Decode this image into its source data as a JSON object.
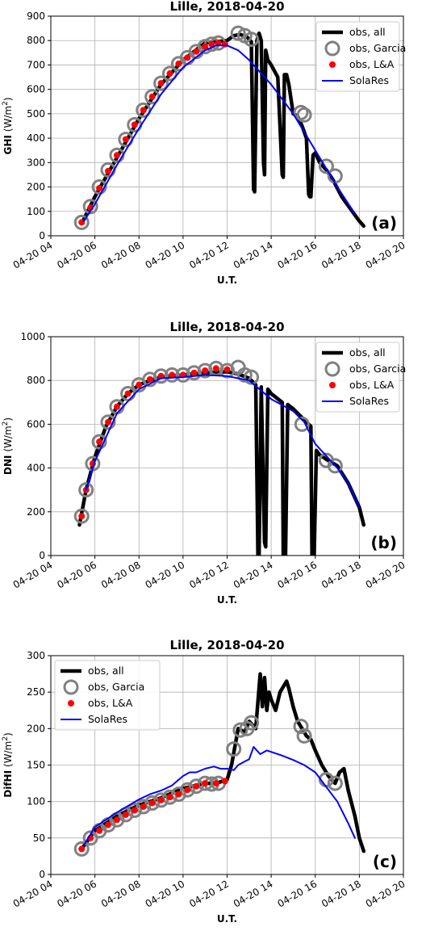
{
  "chart_data": [
    {
      "type": "line",
      "title": "Lille, 2018-04-20",
      "xlabel": "U.T.",
      "ylabel": "GHI",
      "ylabel_unit": "W/m",
      "ylabel_unit_sup": "2",
      "panel_label": "(a)",
      "xlim": [
        4,
        20
      ],
      "ylim": [
        0,
        900
      ],
      "xticks": [
        "04-20 04",
        "04-20 06",
        "04-20 08",
        "04-20 10",
        "04-20 12",
        "04-20 14",
        "04-20 16",
        "04-20 18",
        "04-20 20"
      ],
      "yticks": [
        0,
        100,
        200,
        300,
        400,
        500,
        600,
        700,
        800,
        900
      ],
      "grid": true,
      "legend_position": "top-right",
      "legend": [
        "obs, all",
        "obs, Garcia",
        "obs, L&A",
        "SolaRes"
      ],
      "series": [
        {
          "name": "obs, all",
          "x": [
            5.4,
            6.0,
            7.0,
            8.0,
            9.0,
            10.0,
            10.5,
            11.0,
            11.5,
            12.0,
            12.3,
            12.6,
            12.9,
            13.1,
            13.2,
            13.25,
            13.35,
            13.45,
            13.55,
            13.65,
            13.7,
            13.75,
            13.85,
            14.0,
            14.3,
            14.5,
            14.55,
            14.6,
            14.7,
            14.8,
            15.0,
            15.2,
            15.4,
            15.6,
            15.7,
            15.75,
            15.8,
            15.9,
            16.0,
            16.2,
            16.5,
            16.8,
            17.2,
            17.6,
            18.0,
            18.2
          ],
          "y": [
            50,
            160,
            320,
            480,
            620,
            720,
            755,
            790,
            795,
            800,
            820,
            825,
            815,
            795,
            190,
            180,
            800,
            830,
            800,
            300,
            250,
            760,
            720,
            700,
            650,
            250,
            240,
            660,
            660,
            620,
            500,
            490,
            450,
            400,
            170,
            160,
            160,
            330,
            340,
            300,
            270,
            230,
            160,
            110,
            60,
            40
          ]
        },
        {
          "name": "obs, Garcia",
          "x": [
            5.4,
            5.8,
            6.2,
            6.6,
            7.0,
            7.4,
            7.8,
            8.2,
            8.6,
            9.0,
            9.4,
            9.8,
            10.2,
            10.6,
            11.0,
            11.3,
            11.6,
            12.5,
            12.8,
            13.1,
            15.35,
            15.5,
            16.5,
            16.9
          ],
          "y": [
            55,
            120,
            200,
            270,
            330,
            395,
            455,
            515,
            570,
            625,
            665,
            705,
            730,
            755,
            775,
            785,
            790,
            830,
            820,
            805,
            505,
            495,
            285,
            245
          ]
        },
        {
          "name": "obs, L&A",
          "x": [
            5.4,
            5.8,
            6.2,
            6.6,
            7.0,
            7.4,
            7.8,
            8.2,
            8.6,
            9.0,
            9.4,
            9.8,
            10.2,
            10.6,
            11.0,
            11.3,
            11.6,
            11.9
          ],
          "y": [
            55,
            115,
            195,
            265,
            330,
            395,
            455,
            515,
            570,
            625,
            665,
            705,
            730,
            755,
            775,
            785,
            790,
            785
          ]
        },
        {
          "name": "SolaRes",
          "x": [
            5.5,
            6.0,
            7.0,
            8.0,
            9.0,
            10.0,
            11.0,
            11.5,
            12.0,
            12.5,
            13.0,
            14.0,
            15.0,
            16.0,
            17.0,
            17.8
          ],
          "y": [
            60,
            130,
            290,
            440,
            580,
            690,
            760,
            780,
            780,
            760,
            720,
            620,
            500,
            350,
            200,
            90
          ]
        }
      ]
    },
    {
      "type": "line",
      "title": "Lille, 2018-04-20",
      "xlabel": "U.T.",
      "ylabel": "DNI",
      "ylabel_unit": "W/m",
      "ylabel_unit_sup": "2",
      "panel_label": "(b)",
      "xlim": [
        4,
        20
      ],
      "ylim": [
        0,
        1000
      ],
      "xticks": [
        "04-20 04",
        "04-20 06",
        "04-20 08",
        "04-20 10",
        "04-20 12",
        "04-20 14",
        "04-20 16",
        "04-20 18",
        "04-20 20"
      ],
      "yticks": [
        0,
        200,
        400,
        600,
        800,
        1000
      ],
      "grid": true,
      "legend_position": "top-right",
      "legend": [
        "obs, all",
        "obs, Garcia",
        "obs, L&A",
        "SolaRes"
      ],
      "series": [
        {
          "name": "obs, all",
          "x": [
            5.3,
            5.6,
            6.0,
            6.5,
            7.0,
            7.5,
            8.0,
            8.5,
            9.0,
            10.0,
            11.0,
            12.0,
            12.5,
            13.0,
            13.3,
            13.4,
            13.45,
            13.55,
            13.7,
            13.75,
            13.85,
            14.0,
            14.5,
            14.55,
            14.65,
            14.75,
            15.0,
            15.5,
            15.8,
            15.85,
            15.95,
            16.05,
            16.2,
            16.5,
            17.0,
            17.5,
            18.0,
            18.2
          ],
          "y": [
            140,
            300,
            450,
            590,
            680,
            740,
            780,
            800,
            815,
            825,
            835,
            840,
            830,
            810,
            780,
            0,
            0,
            770,
            60,
            40,
            760,
            740,
            700,
            0,
            0,
            690,
            670,
            620,
            590,
            0,
            0,
            480,
            460,
            440,
            410,
            330,
            220,
            140
          ]
        },
        {
          "name": "obs, Garcia",
          "x": [
            5.4,
            5.6,
            5.9,
            6.2,
            6.6,
            7.0,
            7.5,
            8.0,
            8.5,
            9.0,
            9.5,
            10.0,
            10.5,
            11.0,
            11.5,
            12.0,
            12.5,
            12.8,
            13.1,
            15.4,
            16.5,
            16.9
          ],
          "y": [
            180,
            300,
            420,
            520,
            610,
            680,
            740,
            780,
            805,
            820,
            825,
            825,
            835,
            845,
            855,
            845,
            860,
            825,
            815,
            600,
            435,
            410
          ]
        },
        {
          "name": "obs, L&A",
          "x": [
            5.4,
            5.6,
            5.9,
            6.2,
            6.6,
            7.0,
            7.5,
            8.0,
            8.5,
            9.0,
            9.5,
            10.0,
            10.5,
            11.0,
            11.5,
            12.0
          ],
          "y": [
            180,
            300,
            420,
            520,
            610,
            680,
            740,
            780,
            805,
            820,
            825,
            825,
            835,
            845,
            855,
            850
          ]
        },
        {
          "name": "SolaRes",
          "x": [
            5.6,
            6.0,
            7.0,
            8.0,
            9.0,
            10.0,
            11.0,
            12.0,
            12.5,
            13.0,
            14.0,
            15.0,
            15.5,
            16.0,
            17.0,
            17.5,
            18.0
          ],
          "y": [
            300,
            430,
            650,
            760,
            810,
            815,
            825,
            820,
            810,
            800,
            715,
            660,
            610,
            510,
            400,
            330,
            220
          ]
        }
      ]
    },
    {
      "type": "line",
      "title": "Lille, 2018-04-20",
      "xlabel": "U.T.",
      "ylabel": "DifHI",
      "ylabel_unit": "W/m",
      "ylabel_unit_sup": "2",
      "panel_label": "(c)",
      "xlim": [
        4,
        20
      ],
      "ylim": [
        0,
        300
      ],
      "xticks": [
        "04-20 04",
        "04-20 06",
        "04-20 08",
        "04-20 10",
        "04-20 12",
        "04-20 14",
        "04-20 16",
        "04-20 18",
        "04-20 20"
      ],
      "yticks": [
        0,
        50,
        100,
        150,
        200,
        250,
        300
      ],
      "grid": true,
      "legend_position": "top-left",
      "legend": [
        "obs, all",
        "obs, Garcia",
        "obs, L&A",
        "SolaRes"
      ],
      "series": [
        {
          "name": "obs, all",
          "x": [
            5.4,
            6.0,
            7.0,
            8.0,
            9.0,
            10.0,
            11.0,
            11.5,
            12.0,
            12.2,
            12.5,
            12.8,
            13.0,
            13.3,
            13.5,
            13.6,
            13.7,
            13.8,
            13.9,
            14.0,
            14.2,
            14.4,
            14.6,
            14.7,
            14.8,
            15.0,
            15.2,
            15.4,
            15.6,
            15.8,
            16.0,
            16.3,
            16.6,
            16.9,
            17.1,
            17.3,
            17.5,
            17.8,
            18.0,
            18.2
          ],
          "y": [
            35,
            60,
            80,
            95,
            105,
            118,
            125,
            125,
            130,
            150,
            200,
            195,
            210,
            200,
            275,
            230,
            270,
            225,
            250,
            240,
            225,
            250,
            260,
            265,
            255,
            230,
            210,
            200,
            190,
            185,
            170,
            150,
            135,
            125,
            140,
            145,
            115,
            80,
            50,
            32
          ]
        },
        {
          "name": "obs, Garcia",
          "x": [
            5.4,
            5.8,
            6.2,
            6.6,
            7.0,
            7.4,
            7.8,
            8.2,
            8.6,
            9.0,
            9.4,
            9.8,
            10.2,
            10.6,
            11.0,
            11.3,
            11.6,
            12.3,
            12.6,
            12.9,
            13.1,
            15.35,
            15.5,
            16.5,
            16.9
          ],
          "y": [
            35,
            50,
            60,
            68,
            75,
            82,
            88,
            93,
            98,
            102,
            106,
            110,
            116,
            121,
            125,
            124,
            125,
            172,
            198,
            200,
            208,
            203,
            190,
            130,
            125
          ]
        },
        {
          "name": "obs, L&A",
          "x": [
            5.4,
            5.8,
            6.2,
            6.6,
            7.0,
            7.4,
            7.8,
            8.2,
            8.6,
            9.0,
            9.4,
            9.8,
            10.2,
            10.6,
            11.0,
            11.5,
            11.9
          ],
          "y": [
            35,
            50,
            60,
            68,
            75,
            82,
            88,
            93,
            98,
            102,
            106,
            110,
            116,
            121,
            125,
            125,
            128
          ]
        },
        {
          "name": "SolaRes",
          "x": [
            5.5,
            6.0,
            7.0,
            8.0,
            8.5,
            9.0,
            9.5,
            10.0,
            10.3,
            10.6,
            11.0,
            11.4,
            11.7,
            12.0,
            12.3,
            12.5,
            12.8,
            13.0,
            13.2,
            13.5,
            13.8,
            14.0,
            14.5,
            15.0,
            15.5,
            16.0,
            16.5,
            17.0,
            17.5,
            17.8
          ],
          "y": [
            40,
            65,
            85,
            103,
            110,
            115,
            122,
            135,
            140,
            140,
            145,
            148,
            145,
            145,
            143,
            150,
            155,
            158,
            175,
            165,
            170,
            168,
            163,
            157,
            150,
            140,
            120,
            100,
            70,
            50
          ]
        }
      ]
    }
  ]
}
